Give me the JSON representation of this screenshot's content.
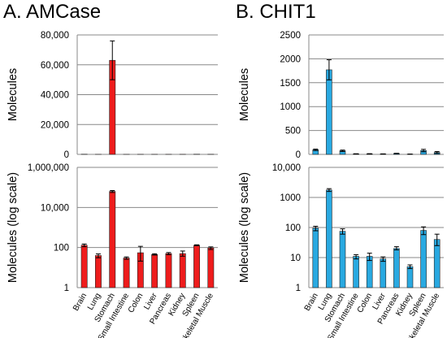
{
  "panels": [
    {
      "id": "amcase",
      "title": "A. AMCase"
    },
    {
      "id": "chit1",
      "title": "B. CHIT1"
    }
  ],
  "chart_data": [
    {
      "id": "amcase-linear",
      "type": "bar",
      "panel": "A. AMCase",
      "scale": "linear",
      "ylabel": "Molecules",
      "ylim": [
        0,
        80000
      ],
      "yticks": [
        0,
        20000,
        40000,
        60000,
        80000
      ],
      "ytick_labels": [
        "0",
        "20,000",
        "40,000",
        "60,000",
        "80,000"
      ],
      "grid": true,
      "color": "#ee1c1c",
      "categories": [
        "Brain",
        "Lung",
        "Stomach",
        "Small Intestine",
        "Colon",
        "Liver",
        "Pancreas",
        "Kidney",
        "Spleen",
        "Skeletal Muscle"
      ],
      "values": [
        130,
        40,
        63000,
        30,
        55,
        45,
        50,
        50,
        130,
        95
      ],
      "errors": [
        0,
        0,
        13000,
        0,
        0,
        0,
        0,
        0,
        0,
        0
      ]
    },
    {
      "id": "amcase-log",
      "type": "bar",
      "panel": "A. AMCase",
      "scale": "log",
      "ylabel": "Molecules (log scale)",
      "ylim": [
        1,
        1000000
      ],
      "yticks": [
        1,
        100,
        10000,
        1000000
      ],
      "ytick_labels": [
        "1",
        "100",
        "10,000",
        "1,000,000"
      ],
      "grid": true,
      "color": "#ee1c1c",
      "categories": [
        "Brain",
        "Lung",
        "Stomach",
        "Small Intestine",
        "Colon",
        "Liver",
        "Pancreas",
        "Kidney",
        "Spleen",
        "Skeletal Muscle"
      ],
      "values": [
        130,
        40,
        63000,
        30,
        55,
        45,
        50,
        50,
        130,
        95
      ],
      "err_low": [
        110,
        31,
        56000,
        26,
        21,
        42,
        44,
        37,
        124,
        80
      ],
      "err_high": [
        150,
        48,
        70000,
        34,
        115,
        49,
        56,
        67,
        137,
        108
      ]
    },
    {
      "id": "chit1-linear",
      "type": "bar",
      "panel": "B. CHIT1",
      "scale": "linear",
      "ylabel": "Molecules",
      "ylim": [
        0,
        2500
      ],
      "yticks": [
        0,
        500,
        1000,
        1500,
        2000,
        2500
      ],
      "ytick_labels": [
        "0",
        "500",
        "1000",
        "1500",
        "2000",
        "2500"
      ],
      "grid": true,
      "color": "#29a9e1",
      "categories": [
        "Brain",
        "Lung",
        "Stomach",
        "Small Intestine",
        "Colon",
        "Liver",
        "Pancreas",
        "Kidney",
        "Spleen",
        "Skeletal Muscle"
      ],
      "values": [
        95,
        1770,
        75,
        11,
        11,
        9,
        20,
        5,
        80,
        40
      ],
      "errors": [
        15,
        210,
        15,
        2,
        4,
        2,
        3,
        1,
        25,
        20
      ]
    },
    {
      "id": "chit1-log",
      "type": "bar",
      "panel": "B. CHIT1",
      "scale": "log",
      "ylabel": "Molecules (log scale)",
      "ylim": [
        1,
        10000
      ],
      "yticks": [
        1,
        10,
        100,
        1000,
        10000
      ],
      "ytick_labels": [
        "1",
        "10",
        "100",
        "1000",
        "10,000"
      ],
      "grid": true,
      "color": "#29a9e1",
      "categories": [
        "Brain",
        "Lung",
        "Stomach",
        "Small Intestine",
        "Colon",
        "Liver",
        "Pancreas",
        "Kidney",
        "Spleen",
        "Skeletal Muscle"
      ],
      "values": [
        95,
        1770,
        75,
        11,
        11,
        9,
        20,
        5,
        80,
        40
      ],
      "err_low": [
        78,
        1580,
        60,
        9,
        8,
        7.5,
        18,
        4.3,
        58,
        25
      ],
      "err_high": [
        110,
        1960,
        90,
        12.5,
        14,
        10.5,
        23,
        5.7,
        105,
        60
      ]
    }
  ]
}
